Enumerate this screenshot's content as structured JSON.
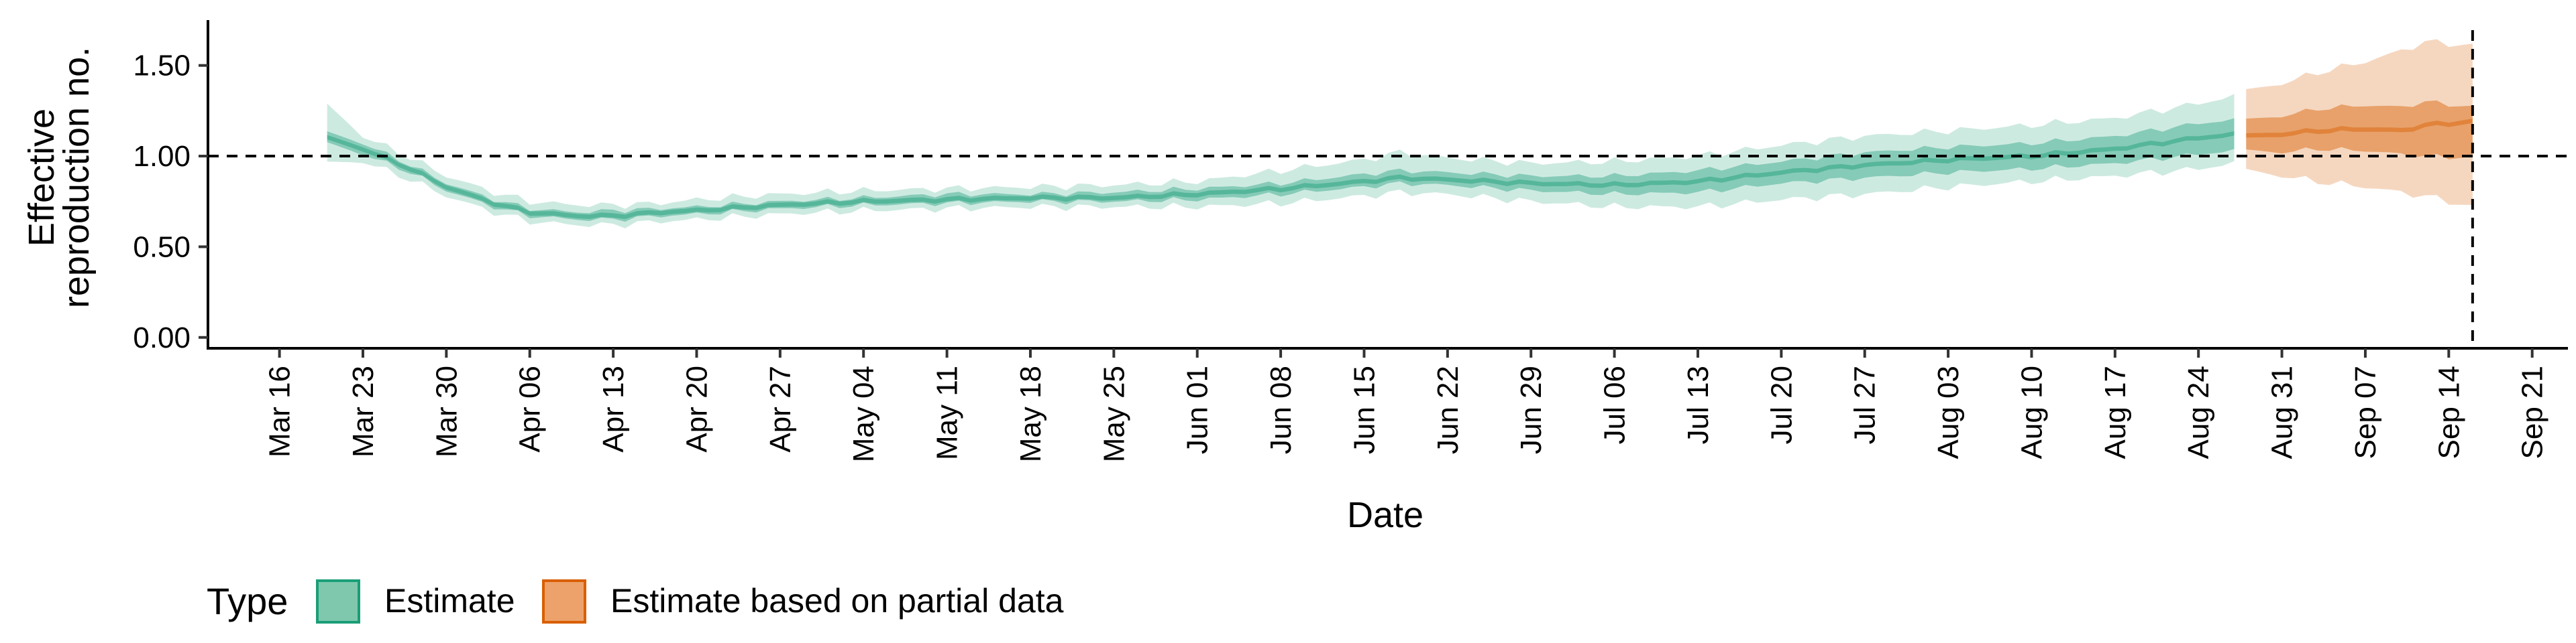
{
  "chart_data": {
    "type": "area",
    "title": "",
    "xlabel": "Date",
    "ylabel_lines": [
      "Effective",
      "reproduction no."
    ],
    "x_range": [
      "2020-03-10",
      "2020-09-24"
    ],
    "ylim": [
      -0.06,
      1.75
    ],
    "y_ticks": [
      0.0,
      0.5,
      1.0,
      1.5
    ],
    "y_tick_labels": [
      "0.00",
      "0.50",
      "1.00",
      "1.50"
    ],
    "x_ticks": [
      "2020-03-16",
      "2020-03-23",
      "2020-03-30",
      "2020-04-06",
      "2020-04-13",
      "2020-04-20",
      "2020-04-27",
      "2020-05-04",
      "2020-05-11",
      "2020-05-18",
      "2020-05-25",
      "2020-06-01",
      "2020-06-08",
      "2020-06-15",
      "2020-06-22",
      "2020-06-29",
      "2020-07-06",
      "2020-07-13",
      "2020-07-20",
      "2020-07-27",
      "2020-08-03",
      "2020-08-10",
      "2020-08-17",
      "2020-08-24",
      "2020-08-31",
      "2020-09-07",
      "2020-09-14",
      "2020-09-21"
    ],
    "x_tick_labels": [
      "Mar 16",
      "Mar 23",
      "Mar 30",
      "Apr 06",
      "Apr 13",
      "Apr 20",
      "Apr 27",
      "May 04",
      "May 11",
      "May 18",
      "May 25",
      "Jun 01",
      "Jun 08",
      "Jun 15",
      "Jun 22",
      "Jun 29",
      "Jul 06",
      "Jul 13",
      "Jul 20",
      "Jul 27",
      "Aug 03",
      "Aug 10",
      "Aug 17",
      "Aug 24",
      "Aug 31",
      "Sep 07",
      "Sep 14",
      "Sep 21"
    ],
    "reference_hline": 1.0,
    "reference_vline": "2020-09-16",
    "grid": false,
    "legend": {
      "title": "Type",
      "placement": "bottom-left",
      "entries": [
        {
          "label": "Estimate",
          "fill": "#7fc8ad",
          "stroke": "#1b9e77"
        },
        {
          "label": "Estimate based on partial data",
          "fill": "#eda26b",
          "stroke": "#d95f02"
        }
      ]
    },
    "series": [
      {
        "type_key": "Estimate",
        "color": "#1b9e77",
        "x": [
          "2020-03-20",
          "2020-03-23",
          "2020-03-27",
          "2020-03-30",
          "2020-04-03",
          "2020-04-06",
          "2020-04-10",
          "2020-04-13",
          "2020-04-17",
          "2020-04-20",
          "2020-04-27",
          "2020-05-04",
          "2020-05-11",
          "2020-05-18",
          "2020-05-25",
          "2020-06-01",
          "2020-06-08",
          "2020-06-15",
          "2020-06-18",
          "2020-06-22",
          "2020-06-29",
          "2020-07-06",
          "2020-07-13",
          "2020-07-20",
          "2020-07-27",
          "2020-08-03",
          "2020-08-10",
          "2020-08-17",
          "2020-08-24",
          "2020-08-27"
        ],
        "median": [
          1.1,
          1.04,
          0.93,
          0.83,
          0.74,
          0.69,
          0.67,
          0.67,
          0.69,
          0.7,
          0.73,
          0.75,
          0.76,
          0.77,
          0.77,
          0.79,
          0.82,
          0.86,
          0.88,
          0.87,
          0.85,
          0.84,
          0.86,
          0.91,
          0.95,
          0.98,
          1.0,
          1.04,
          1.1,
          1.12
        ],
        "inner_lower": [
          1.07,
          1.01,
          0.91,
          0.81,
          0.72,
          0.67,
          0.65,
          0.65,
          0.67,
          0.68,
          0.71,
          0.73,
          0.74,
          0.75,
          0.75,
          0.76,
          0.79,
          0.83,
          0.85,
          0.84,
          0.81,
          0.79,
          0.8,
          0.85,
          0.88,
          0.91,
          0.93,
          0.96,
          1.01,
          1.03
        ],
        "inner_upper": [
          1.13,
          1.07,
          0.95,
          0.85,
          0.76,
          0.71,
          0.69,
          0.7,
          0.71,
          0.72,
          0.75,
          0.77,
          0.79,
          0.79,
          0.8,
          0.82,
          0.85,
          0.9,
          0.92,
          0.91,
          0.89,
          0.89,
          0.92,
          0.97,
          1.02,
          1.05,
          1.07,
          1.11,
          1.18,
          1.2
        ],
        "outer_lower": [
          0.96,
          0.97,
          0.87,
          0.78,
          0.69,
          0.64,
          0.62,
          0.62,
          0.64,
          0.65,
          0.68,
          0.7,
          0.71,
          0.72,
          0.72,
          0.72,
          0.74,
          0.78,
          0.8,
          0.79,
          0.75,
          0.72,
          0.72,
          0.76,
          0.79,
          0.83,
          0.86,
          0.89,
          0.93,
          0.96
        ],
        "outer_upper": [
          1.28,
          1.11,
          0.99,
          0.89,
          0.8,
          0.75,
          0.73,
          0.73,
          0.74,
          0.76,
          0.79,
          0.81,
          0.82,
          0.83,
          0.84,
          0.86,
          0.92,
          0.98,
          1.02,
          0.99,
          0.96,
          0.97,
          1.0,
          1.06,
          1.11,
          1.14,
          1.17,
          1.21,
          1.29,
          1.33
        ]
      },
      {
        "type_key": "Estimate based on partial data",
        "color": "#d95f02",
        "x": [
          "2020-08-28",
          "2020-08-31",
          "2020-09-03",
          "2020-09-07",
          "2020-09-10",
          "2020-09-12",
          "2020-09-16"
        ],
        "median": [
          1.11,
          1.12,
          1.14,
          1.15,
          1.14,
          1.17,
          1.19
        ],
        "inner_lower": [
          1.03,
          1.02,
          1.04,
          1.03,
          1.01,
          1.0,
          0.99
        ],
        "inner_upper": [
          1.2,
          1.22,
          1.26,
          1.28,
          1.27,
          1.3,
          1.27
        ],
        "outer_lower": [
          0.92,
          0.89,
          0.86,
          0.83,
          0.8,
          0.78,
          0.72
        ],
        "outer_upper": [
          1.36,
          1.4,
          1.46,
          1.52,
          1.58,
          1.63,
          1.61
        ]
      }
    ]
  }
}
